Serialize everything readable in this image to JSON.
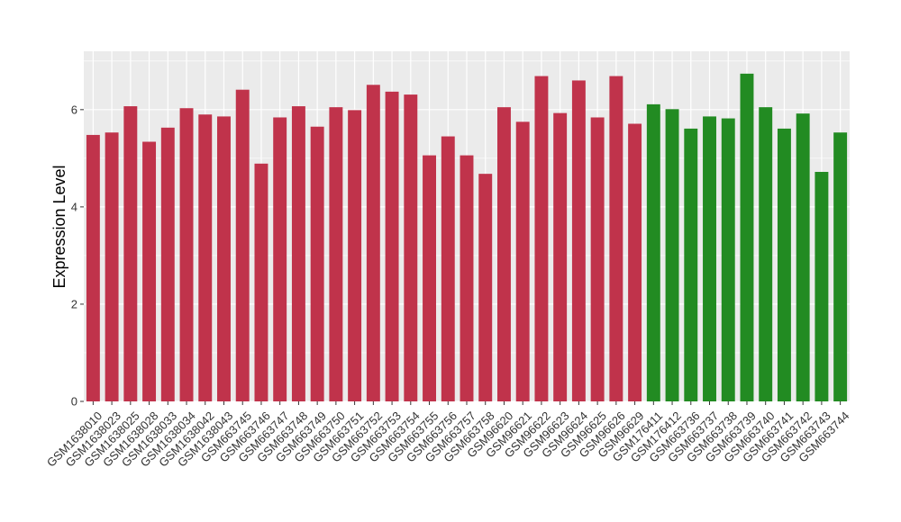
{
  "chart_data": {
    "type": "bar",
    "title": "",
    "xlabel": "",
    "ylabel": "Expression Level",
    "ylim": [
      0,
      7.2
    ],
    "y_ticks": [
      0,
      2,
      4,
      6
    ],
    "y_tick_labels": [
      "0",
      "2",
      "4",
      "6"
    ],
    "grid": true,
    "legend": "none",
    "background": "#ebebeb",
    "gridline_color": "#ffffff",
    "colors": {
      "group_1": "#c0334b",
      "group_2": "#228b22"
    },
    "categories": [
      "GSM1638010",
      "GSM1638023",
      "GSM1638025",
      "GSM1638028",
      "GSM1638033",
      "GSM1638034",
      "GSM1638042",
      "GSM1638043",
      "GSM663745",
      "GSM663746",
      "GSM663747",
      "GSM663748",
      "GSM663749",
      "GSM663750",
      "GSM663751",
      "GSM663752",
      "GSM663753",
      "GSM663754",
      "GSM663755",
      "GSM663756",
      "GSM663757",
      "GSM663758",
      "GSM96620",
      "GSM96621",
      "GSM96622",
      "GSM96623",
      "GSM96624",
      "GSM96625",
      "GSM96626",
      "GSM96629",
      "GSM176411",
      "GSM176412",
      "GSM663736",
      "GSM663737",
      "GSM663738",
      "GSM663739",
      "GSM663740",
      "GSM663741",
      "GSM663742",
      "GSM663743",
      "GSM663744"
    ],
    "values": [
      5.48,
      5.53,
      6.07,
      5.34,
      5.63,
      6.03,
      5.9,
      5.86,
      6.41,
      4.89,
      5.84,
      6.07,
      5.65,
      6.05,
      5.99,
      6.51,
      6.37,
      6.31,
      5.06,
      5.45,
      5.06,
      4.68,
      6.05,
      5.75,
      6.69,
      5.93,
      6.6,
      5.84,
      6.69,
      5.71,
      6.11,
      6.01,
      5.61,
      5.86,
      5.82,
      6.74,
      6.05,
      5.61,
      5.92,
      4.72,
      5.53
    ],
    "bar_groups": [
      "group_1",
      "group_1",
      "group_1",
      "group_1",
      "group_1",
      "group_1",
      "group_1",
      "group_1",
      "group_1",
      "group_1",
      "group_1",
      "group_1",
      "group_1",
      "group_1",
      "group_1",
      "group_1",
      "group_1",
      "group_1",
      "group_1",
      "group_1",
      "group_1",
      "group_1",
      "group_1",
      "group_1",
      "group_1",
      "group_1",
      "group_1",
      "group_1",
      "group_1",
      "group_1",
      "group_2",
      "group_2",
      "group_2",
      "group_2",
      "group_2",
      "group_2",
      "group_2",
      "group_2",
      "group_2",
      "group_2",
      "group_2"
    ]
  }
}
